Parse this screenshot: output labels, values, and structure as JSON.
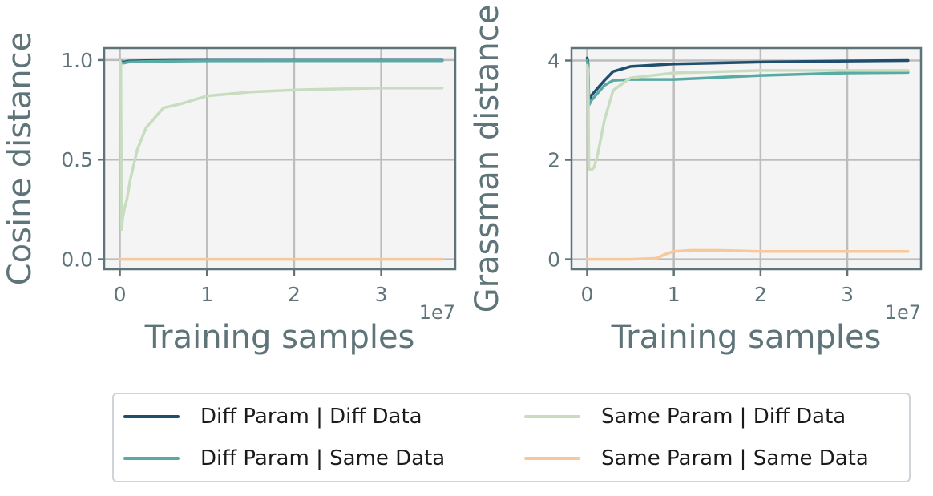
{
  "chart_data": [
    {
      "type": "line",
      "ylabel": "Cosine distance",
      "xlabel": "Training samples",
      "x_exponent_label": "1e7",
      "xlim": [
        -0.18,
        3.85
      ],
      "ylim": [
        -0.05,
        1.06
      ],
      "xticks": [
        0,
        1,
        2,
        3
      ],
      "xtick_labels": [
        "0",
        "1",
        "2",
        "3"
      ],
      "yticks": [
        0.0,
        0.5,
        1.0
      ],
      "ytick_labels": [
        "0.0",
        "0.5",
        "1.0"
      ],
      "grid": true,
      "series": [
        {
          "name": "Diff Param | Diff Data",
          "color": "#1f4e6e",
          "x": [
            0,
            0.02,
            0.05,
            0.1,
            0.3,
            0.6,
            1.0,
            2.0,
            3.0,
            3.7
          ],
          "y": [
            1.0,
            0.99,
            0.99,
            0.995,
            0.997,
            0.998,
            0.999,
            0.999,
            0.999,
            0.999
          ]
        },
        {
          "name": "Diff Param | Same Data",
          "color": "#5aaaa4",
          "x": [
            0,
            0.02,
            0.05,
            0.1,
            0.3,
            0.6,
            1.0,
            2.0,
            3.0,
            3.7
          ],
          "y": [
            1.0,
            0.985,
            0.985,
            0.99,
            0.993,
            0.995,
            0.996,
            0.997,
            0.997,
            0.997
          ]
        },
        {
          "name": "Same Param | Diff Data",
          "color": "#c8dcc0",
          "x": [
            0,
            0.01,
            0.02,
            0.03,
            0.05,
            0.08,
            0.12,
            0.2,
            0.3,
            0.5,
            0.7,
            1.0,
            1.5,
            2.0,
            2.5,
            3.0,
            3.7
          ],
          "y": [
            1.0,
            0.98,
            0.15,
            0.2,
            0.25,
            0.3,
            0.4,
            0.55,
            0.66,
            0.76,
            0.78,
            0.82,
            0.84,
            0.85,
            0.855,
            0.86,
            0.86
          ]
        },
        {
          "name": "Same Param | Same Data",
          "color": "#f8c89a",
          "x": [
            0,
            0.5,
            1.0,
            2.0,
            3.0,
            3.7
          ],
          "y": [
            0,
            0,
            0,
            0,
            0,
            0
          ]
        }
      ]
    },
    {
      "type": "line",
      "ylabel": "Grassman distance",
      "xlabel": "Training samples",
      "x_exponent_label": "1e7",
      "xlim": [
        -0.18,
        3.85
      ],
      "ylim": [
        -0.2,
        4.25
      ],
      "xticks": [
        0,
        1,
        2,
        3
      ],
      "xtick_labels": [
        "0",
        "1",
        "2",
        "3"
      ],
      "yticks": [
        0,
        2,
        4
      ],
      "ytick_labels": [
        "0",
        "2",
        "4"
      ],
      "grid": true,
      "series": [
        {
          "name": "Diff Param | Diff Data",
          "color": "#1f4e6e",
          "x": [
            0,
            0.01,
            0.02,
            0.05,
            0.1,
            0.2,
            0.3,
            0.5,
            1.0,
            2.0,
            3.0,
            3.7
          ],
          "y": [
            4.05,
            3.95,
            3.2,
            3.3,
            3.4,
            3.6,
            3.78,
            3.88,
            3.93,
            3.97,
            3.99,
            4.0
          ]
        },
        {
          "name": "Diff Param | Same Data",
          "color": "#5aaaa4",
          "x": [
            0,
            0.01,
            0.02,
            0.05,
            0.1,
            0.2,
            0.3,
            0.5,
            1.0,
            2.0,
            3.0,
            3.7
          ],
          "y": [
            4.0,
            3.9,
            3.1,
            3.2,
            3.3,
            3.5,
            3.6,
            3.62,
            3.62,
            3.7,
            3.75,
            3.76
          ]
        },
        {
          "name": "Same Param | Diff Data",
          "color": "#c8dcc0",
          "x": [
            0,
            0.01,
            0.02,
            0.03,
            0.05,
            0.08,
            0.12,
            0.2,
            0.3,
            0.5,
            1.0,
            2.0,
            3.0,
            3.7
          ],
          "y": [
            3.9,
            3.8,
            1.85,
            1.8,
            1.8,
            1.85,
            2.1,
            2.8,
            3.4,
            3.65,
            3.75,
            3.8,
            3.8,
            3.8
          ]
        },
        {
          "name": "Same Param | Same Data",
          "color": "#f8c89a",
          "x": [
            0,
            0.5,
            0.8,
            0.9,
            1.0,
            1.2,
            1.5,
            2.0,
            3.0,
            3.7
          ],
          "y": [
            0,
            0,
            0.02,
            0.1,
            0.16,
            0.18,
            0.18,
            0.16,
            0.16,
            0.16
          ]
        }
      ]
    }
  ],
  "legend": {
    "entries": [
      {
        "label": "Diff Param | Diff Data",
        "color": "#1f4e6e"
      },
      {
        "label": "Diff Param | Same Data",
        "color": "#5aaaa4"
      },
      {
        "label": "Same Param | Diff Data",
        "color": "#c8dcc0"
      },
      {
        "label": "Same Param | Same Data",
        "color": "#f8c89a"
      }
    ]
  }
}
